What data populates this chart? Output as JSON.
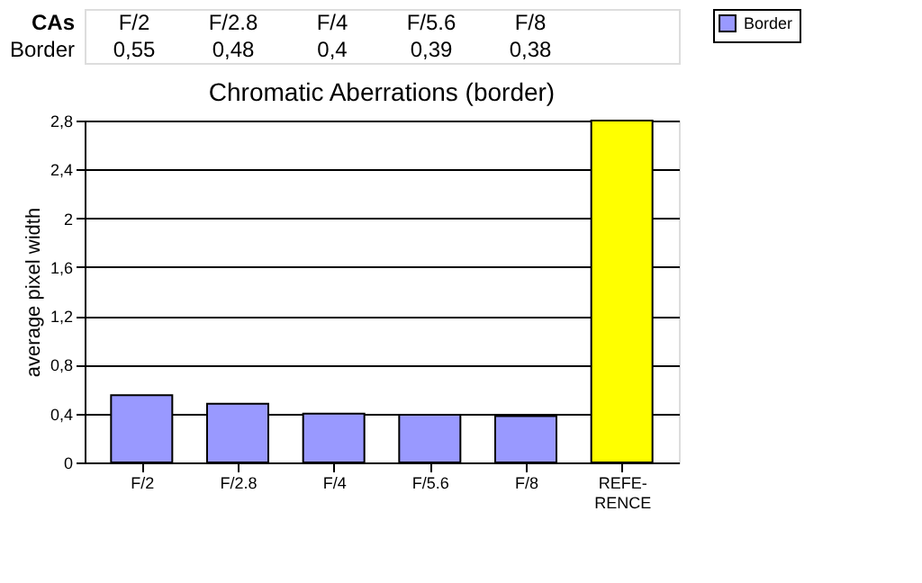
{
  "chart_data": {
    "type": "bar",
    "title": "Chromatic Aberrations (border)",
    "ylabel": "average pixel width",
    "categories": [
      "F/2",
      "F/2.8",
      "F/4",
      "F/5.6",
      "F/8",
      "REFE-\nRENCE"
    ],
    "series": [
      {
        "name": "Border",
        "color": "#9999ff",
        "values": [
          0.55,
          0.48,
          0.4,
          0.39,
          0.38,
          null
        ],
        "value_labels": [
          "0,55",
          "0,48",
          "0,4",
          "0,39",
          "0,38",
          null
        ]
      },
      {
        "type": "bar",
        "color": "#ffff00",
        "values": [
          null,
          null,
          null,
          null,
          null,
          2.8
        ]
      }
    ],
    "annotations": [
      "CAs"
    ],
    "ylim": [
      0,
      2.8
    ],
    "yticks": [
      0,
      {
        "value": 0.4,
        "label": "0,4"
      },
      {
        "value": 0.8,
        "label": "0,8"
      },
      {
        "value": 1.2,
        "label": "1,2"
      },
      {
        "value": 1.6,
        "label": "1,6"
      },
      2,
      {
        "value": 2.4,
        "label": "2,4"
      },
      {
        "value": 2.8,
        "label": "2,8"
      }
    ],
    "grid": "y",
    "legend": "right"
  }
}
